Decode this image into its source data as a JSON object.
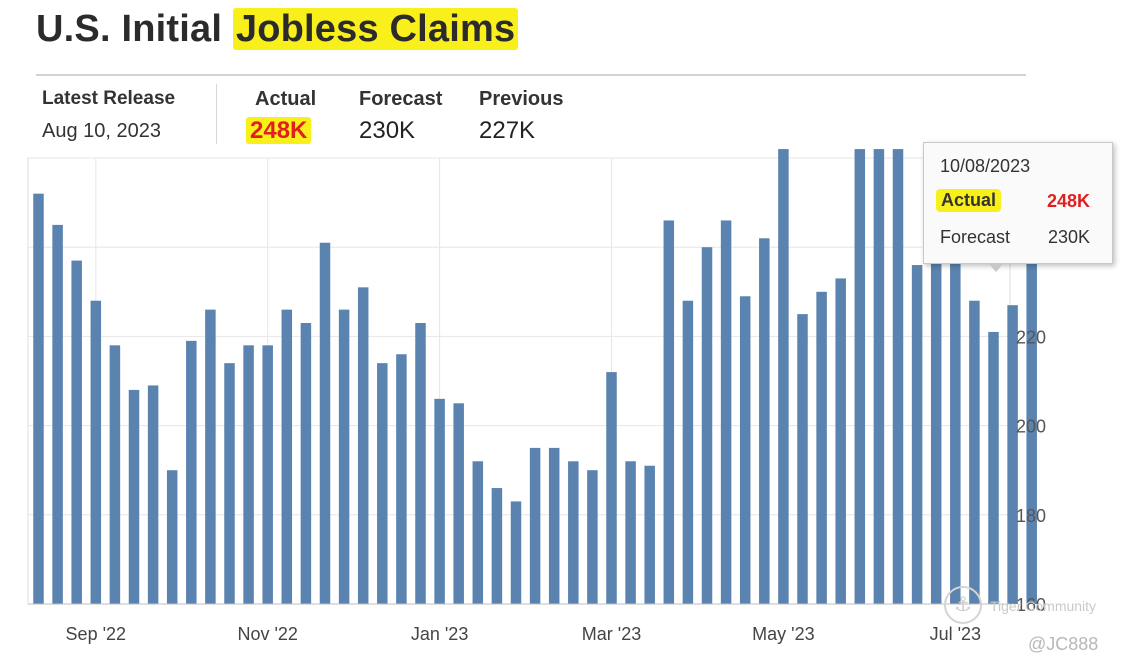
{
  "header": {
    "title_plain": "U.S. Initial",
    "title_highlight": "Jobless Claims"
  },
  "release": {
    "label": "Latest Release",
    "date": "Aug 10, 2023"
  },
  "stats": {
    "actual_label": "Actual",
    "actual_value": "248K",
    "forecast_label": "Forecast",
    "forecast_value": "230K",
    "previous_label": "Previous",
    "previous_value": "227K"
  },
  "tooltip": {
    "date": "10/08/2023",
    "actual_label": "Actual",
    "actual_value": "248K",
    "forecast_label": "Forecast",
    "forecast_value": "230K"
  },
  "watermark": {
    "logo_glyph": "⚓",
    "text": "Tiger Community",
    "handle": "@JC888"
  },
  "colors": {
    "bar": "#5b83b0",
    "highlight": "#f9ef1b",
    "accent_red": "#e02020",
    "grid": "#e6e6e6"
  },
  "chart_data": {
    "type": "bar",
    "title": "",
    "xlabel": "",
    "ylabel": "",
    "ylim": [
      160,
      260
    ],
    "yticks": [
      160,
      180,
      200,
      220,
      240
    ],
    "grid": true,
    "legend": "none",
    "x_tick_labels": [
      "Sep '22",
      "Nov '22",
      "Jan '23",
      "Mar '23",
      "May '23",
      "Jul '23"
    ],
    "x_tick_indices": [
      3,
      12,
      21,
      30,
      39,
      48
    ],
    "values": [
      252,
      245,
      237,
      228,
      218,
      208,
      209,
      190,
      219,
      226,
      214,
      218,
      218,
      226,
      223,
      241,
      226,
      231,
      214,
      216,
      223,
      206,
      205,
      192,
      186,
      183,
      195,
      195,
      192,
      190,
      212,
      192,
      191,
      246,
      228,
      240,
      246,
      229,
      242,
      264,
      225,
      230,
      233,
      262,
      264,
      265,
      236,
      249,
      237,
      228,
      221,
      227,
      248
    ]
  }
}
